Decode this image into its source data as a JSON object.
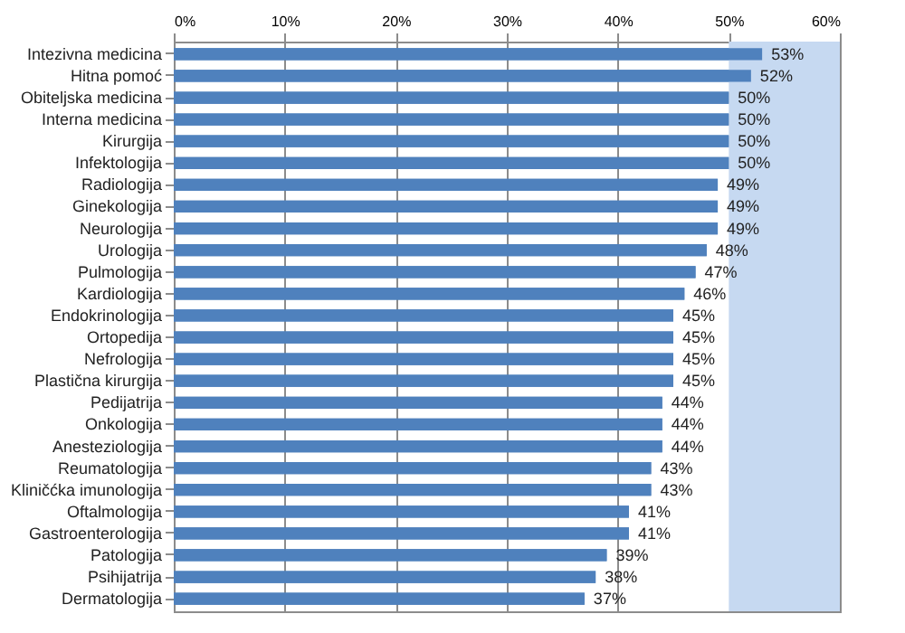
{
  "chart_data": {
    "type": "bar",
    "orientation": "horizontal",
    "categories": [
      "Intezivna medicina",
      "Hitna pomoć",
      "Obiteljska medicina",
      "Interna medicina",
      "Kirurgija",
      "Infektologija",
      "Radiologija",
      "Ginekologija",
      "Neurologija",
      "Urologija",
      "Pulmologija",
      "Kardiologija",
      "Endokrinologija",
      "Ortopedija",
      "Nefrologija",
      "Plastična kirurgija",
      "Pedijatrija",
      "Onkologija",
      "Anesteziologija",
      "Reumatologija",
      "Kliničćka imunologija",
      "Oftalmologija",
      "Gastroenterologija",
      "Patologija",
      "Psihijatrija",
      "Dermatologija"
    ],
    "values": [
      53,
      52,
      50,
      50,
      50,
      50,
      49,
      49,
      49,
      48,
      47,
      46,
      45,
      45,
      45,
      45,
      44,
      44,
      44,
      43,
      43,
      41,
      41,
      39,
      38,
      37
    ],
    "value_labels": [
      "53%",
      "52%",
      "50%",
      "50%",
      "50%",
      "50%",
      "49%",
      "49%",
      "49%",
      "48%",
      "47%",
      "46%",
      "45%",
      "45%",
      "45%",
      "45%",
      "44%",
      "44%",
      "44%",
      "43%",
      "43%",
      "41%",
      "41%",
      "39%",
      "38%",
      "37%"
    ],
    "color": "#4f81bd",
    "xlim": [
      0,
      60
    ],
    "xticks": [
      {
        "value": 0,
        "label": "0%"
      },
      {
        "value": 10,
        "label": "10%"
      },
      {
        "value": 20,
        "label": "20%"
      },
      {
        "value": 30,
        "label": "30%"
      },
      {
        "value": 40,
        "label": "40%"
      },
      {
        "value": 50,
        "label": "50%"
      },
      {
        "value": 60,
        "label": "60%"
      }
    ],
    "bands": [
      {
        "axis": "x",
        "from": 50,
        "to": 60,
        "color": "#c6d9f1"
      }
    ],
    "grid": "x"
  }
}
